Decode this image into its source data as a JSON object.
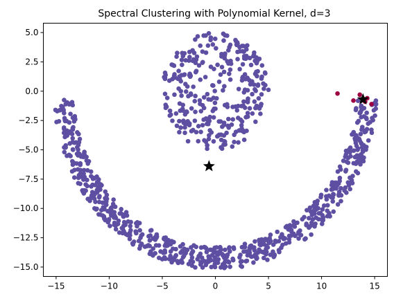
{
  "chart_data": {
    "type": "scatter",
    "title": "Spectral Clustering with Polynomial Kernel, d=3",
    "xlabel": "",
    "ylabel": "",
    "xlim": [
      -16.2,
      16.2
    ],
    "ylim": [
      -15.8,
      5.8
    ],
    "x_ticks": [
      -15,
      -10,
      -5,
      0,
      5,
      10,
      15
    ],
    "y_ticks": [
      5.0,
      2.5,
      0.0,
      -2.5,
      -5.0,
      -7.5,
      -10.0,
      -12.5,
      -15.0
    ],
    "x_tick_labels": [
      "−15",
      "−10",
      "−5",
      "0",
      "5",
      "10",
      "15"
    ],
    "y_tick_labels": [
      "5.0",
      "2.5",
      "0.0",
      "−2.5",
      "−5.0",
      "−7.5",
      "−10.0",
      "−12.5",
      "−15.0"
    ],
    "grid": false,
    "colors": {
      "cluster_main": "#5e4fa2",
      "cluster_minor": "#9e0142",
      "centroid": "#000000"
    },
    "series": [
      {
        "cluster": 0,
        "shape": "disk",
        "center": [
          0,
          0
        ],
        "radius": 5,
        "count": 320,
        "color": "#5e4fa2"
      },
      {
        "cluster": 0,
        "shape": "lower-semicircle-band",
        "center": [
          0,
          0
        ],
        "inner_radius": 13.3,
        "outer_radius": 15.2,
        "angle_range_deg": [
          183,
          357
        ],
        "count": 700,
        "color": "#5e4fa2"
      },
      {
        "cluster": 1,
        "shape": "points",
        "points": [
          [
            11.5,
            -0.2
          ],
          [
            13.0,
            -0.8
          ],
          [
            13.6,
            -0.3
          ],
          [
            14.3,
            -0.6
          ],
          [
            14.7,
            -1.1
          ],
          [
            14.1,
            -0.9
          ]
        ],
        "color": "#9e0142"
      }
    ],
    "centroids": [
      {
        "x": -0.6,
        "y": -6.4
      },
      {
        "x": 13.9,
        "y": -0.7
      }
    ]
  }
}
